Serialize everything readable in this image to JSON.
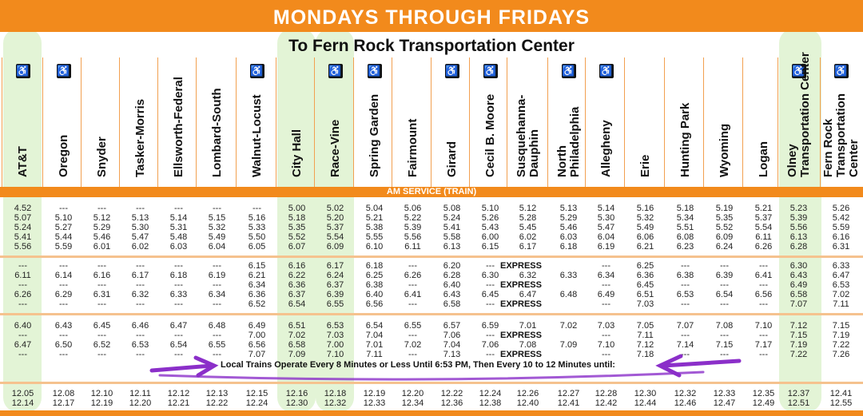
{
  "banner": "MONDAYS THROUGH FRIDAYS",
  "subhead": "To Fern Rock Transportation Center",
  "am_band": "AM SERVICE (TRAIN)",
  "note": "Local Trains Operate Every 8 Minutes or Less Until 6:53 PM, Then Every 10 to 12 Minutes until:",
  "express_label": "EXPRESS",
  "accessible_icon": "wheelchair-icon",
  "colors": {
    "banner": "#f28a1c",
    "highlight": "#9bd66a",
    "annotation": "#8b2fc9"
  },
  "stations": [
    {
      "name": "AT&T",
      "accessible": true
    },
    {
      "name": "Oregon",
      "accessible": true
    },
    {
      "name": "Snyder",
      "accessible": false
    },
    {
      "name": "Tasker-Morris",
      "accessible": false
    },
    {
      "name": "Ellsworth-Federal",
      "accessible": false
    },
    {
      "name": "Lombard-South",
      "accessible": false
    },
    {
      "name": "Walnut-Locust",
      "accessible": true
    },
    {
      "name": "City Hall",
      "accessible": false
    },
    {
      "name": "Race-Vine",
      "accessible": true
    },
    {
      "name": "Spring Garden",
      "accessible": true
    },
    {
      "name": "Fairmount",
      "accessible": false
    },
    {
      "name": "Girard",
      "accessible": true
    },
    {
      "name": "Cecil B. Moore",
      "accessible": true
    },
    {
      "name": "Susquehanna-\nDauphin",
      "accessible": false
    },
    {
      "name": "North\nPhiladelphia",
      "accessible": true
    },
    {
      "name": "Allegheny",
      "accessible": true
    },
    {
      "name": "Erie",
      "accessible": false
    },
    {
      "name": "Hunting Park",
      "accessible": false
    },
    {
      "name": "Wyoming",
      "accessible": false
    },
    {
      "name": "Logan",
      "accessible": false
    },
    {
      "name": "Olney\nTransportation Center",
      "accessible": true
    },
    {
      "name": "Fern Rock\nTransportation\nCenter",
      "accessible": true
    }
  ],
  "blocks": [
    {
      "rows": [
        [
          "4.52",
          "---",
          "---",
          "---",
          "---",
          "---",
          "---",
          "5.00",
          "5.02",
          "5.04",
          "5.06",
          "5.08",
          "5.10",
          "5.12",
          "5.13",
          "5.14",
          "5.16",
          "5.18",
          "5.19",
          "5.21",
          "5.23",
          "5.26"
        ],
        [
          "5.07",
          "5.10",
          "5.12",
          "5.13",
          "5.14",
          "5.15",
          "5.16",
          "5.18",
          "5.20",
          "5.21",
          "5.22",
          "5.24",
          "5.26",
          "5.28",
          "5.29",
          "5.30",
          "5.32",
          "5.34",
          "5.35",
          "5.37",
          "5.39",
          "5.42"
        ],
        [
          "5.24",
          "5.27",
          "5.29",
          "5.30",
          "5.31",
          "5.32",
          "5.33",
          "5.35",
          "5.37",
          "5.38",
          "5.39",
          "5.41",
          "5.43",
          "5.45",
          "5.46",
          "5.47",
          "5.49",
          "5.51",
          "5.52",
          "5.54",
          "5.56",
          "5.59"
        ],
        [
          "5.41",
          "5.44",
          "5.46",
          "5.47",
          "5.48",
          "5.49",
          "5.50",
          "5.52",
          "5.54",
          "5.55",
          "5.56",
          "5.58",
          "6.00",
          "6.02",
          "6.03",
          "6.04",
          "6.06",
          "6.08",
          "6.09",
          "6.11",
          "6.13",
          "6.16"
        ],
        [
          "5.56",
          "5.59",
          "6.01",
          "6.02",
          "6.03",
          "6.04",
          "6.05",
          "6.07",
          "6.09",
          "6.10",
          "6.11",
          "6.13",
          "6.15",
          "6.17",
          "6.18",
          "6.19",
          "6.21",
          "6.23",
          "6.24",
          "6.26",
          "6.28",
          "6.31"
        ]
      ]
    },
    {
      "rows": [
        [
          "---",
          "---",
          "---",
          "---",
          "---",
          "---",
          "6.15",
          "6.16",
          "6.17",
          "6.18",
          "---",
          "6.20",
          "---",
          "EXPRESS",
          "",
          "---",
          "6.25",
          "---",
          "---",
          "---",
          "6.30",
          "6.33"
        ],
        [
          "6.11",
          "6.14",
          "6.16",
          "6.17",
          "6.18",
          "6.19",
          "6.21",
          "6.22",
          "6.24",
          "6.25",
          "6.26",
          "6.28",
          "6.30",
          "6.32",
          "6.33",
          "6.34",
          "6.36",
          "6.38",
          "6.39",
          "6.41",
          "6.43",
          "6.47"
        ],
        [
          "---",
          "---",
          "---",
          "---",
          "---",
          "---",
          "6.34",
          "6.36",
          "6.37",
          "6.38",
          "---",
          "6.40",
          "---",
          "EXPRESS",
          "",
          "---",
          "6.45",
          "---",
          "---",
          "---",
          "6.49",
          "6.53"
        ],
        [
          "6.26",
          "6.29",
          "6.31",
          "6.32",
          "6.33",
          "6.34",
          "6.36",
          "6.37",
          "6.39",
          "6.40",
          "6.41",
          "6.43",
          "6.45",
          "6.47",
          "6.48",
          "6.49",
          "6.51",
          "6.53",
          "6.54",
          "6.56",
          "6.58",
          "7.02"
        ],
        [
          "---",
          "---",
          "---",
          "---",
          "---",
          "---",
          "6.52",
          "6.54",
          "6.55",
          "6.56",
          "---",
          "6.58",
          "---",
          "EXPRESS",
          "",
          "---",
          "7.03",
          "---",
          "---",
          "---",
          "7.07",
          "7.11"
        ]
      ]
    },
    {
      "rows": [
        [
          "6.40",
          "6.43",
          "6.45",
          "6.46",
          "6.47",
          "6.48",
          "6.49",
          "6.51",
          "6.53",
          "6.54",
          "6.55",
          "6.57",
          "6.59",
          "7.01",
          "7.02",
          "7.03",
          "7.05",
          "7.07",
          "7.08",
          "7.10",
          "7.12",
          "7.15"
        ],
        [
          "---",
          "---",
          "---",
          "---",
          "---",
          "---",
          "7.00",
          "7.02",
          "7.03",
          "7.04",
          "---",
          "7.06",
          "---",
          "EXPRESS",
          "",
          "---",
          "7.11",
          "---",
          "---",
          "---",
          "7.15",
          "7.19"
        ],
        [
          "6.47",
          "6.50",
          "6.52",
          "6.53",
          "6.54",
          "6.55",
          "6.56",
          "6.58",
          "7.00",
          "7.01",
          "7.02",
          "7.04",
          "7.06",
          "7.08",
          "7.09",
          "7.10",
          "7.12",
          "7.14",
          "7.15",
          "7.17",
          "7.19",
          "7.22"
        ],
        [
          "---",
          "---",
          "---",
          "---",
          "---",
          "---",
          "7.07",
          "7.09",
          "7.10",
          "7.11",
          "---",
          "7.13",
          "---",
          "EXPRESS",
          "",
          "---",
          "7.18",
          "---",
          "---",
          "---",
          "7.22",
          "7.26"
        ]
      ]
    },
    {
      "rows": [
        [
          "12.05",
          "12.08",
          "12.10",
          "12.11",
          "12.12",
          "12.13",
          "12.15",
          "12.16",
          "12.18",
          "12.19",
          "12.20",
          "12.22",
          "12.24",
          "12.26",
          "12.27",
          "12.28",
          "12.30",
          "12.32",
          "12.33",
          "12.35",
          "12.37",
          "12.41"
        ],
        [
          "12.14",
          "12.17",
          "12.19",
          "12.20",
          "12.21",
          "12.22",
          "12.24",
          "12.30",
          "12.32",
          "12.33",
          "12.34",
          "12.36",
          "12.38",
          "12.40",
          "12.41",
          "12.42",
          "12.44",
          "12.46",
          "12.47",
          "12.49",
          "12.51",
          "12.55"
        ]
      ]
    }
  ]
}
